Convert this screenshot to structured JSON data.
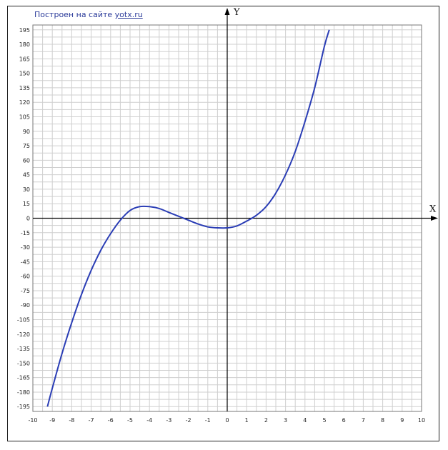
{
  "credit": {
    "text": "Построен на сайте",
    "link": "yotx.ru"
  },
  "chart_data": {
    "type": "line",
    "title": "",
    "xlabel": "X",
    "ylabel": "Y",
    "xlim": [
      -10,
      10
    ],
    "ylim": [
      -200,
      200
    ],
    "grid": true,
    "x_ticks": [
      "-10",
      "-9",
      "-8",
      "-7",
      "-6",
      "-5",
      "-4",
      "-3",
      "-2",
      "-1",
      "0",
      "1",
      "2",
      "3",
      "4",
      "5",
      "6",
      "7",
      "8",
      "9",
      "10"
    ],
    "y_ticks": [
      "195",
      "180",
      "165",
      "150",
      "135",
      "120",
      "105",
      "90",
      "75",
      "60",
      "45",
      "30",
      "15",
      "0",
      "-15",
      "-30",
      "-45",
      "-60",
      "-75",
      "-90",
      "-105",
      "-120",
      "-135",
      "-150",
      "-165",
      "-180",
      "-195"
    ],
    "series": [
      {
        "color": "#2a3db5",
        "x": [
          -9.25,
          -9,
          -8.5,
          -8,
          -7.5,
          -7,
          -6.5,
          -6,
          -5.5,
          -5,
          -4.5,
          -4,
          -3.5,
          -3,
          -2.5,
          -2,
          -1.5,
          -1,
          -0.5,
          0,
          0.5,
          1,
          1.5,
          2,
          2.5,
          3,
          3.5,
          4,
          4.5,
          5,
          5.25
        ],
        "y": [
          -195,
          -176,
          -140,
          -108,
          -79,
          -54,
          -33,
          -16,
          -2,
          8,
          12,
          12,
          10,
          6,
          2,
          -2,
          -6,
          -9,
          -10,
          -10,
          -8,
          -3,
          3,
          12,
          26,
          45,
          69,
          100,
          135,
          178,
          195
        ]
      }
    ]
  }
}
